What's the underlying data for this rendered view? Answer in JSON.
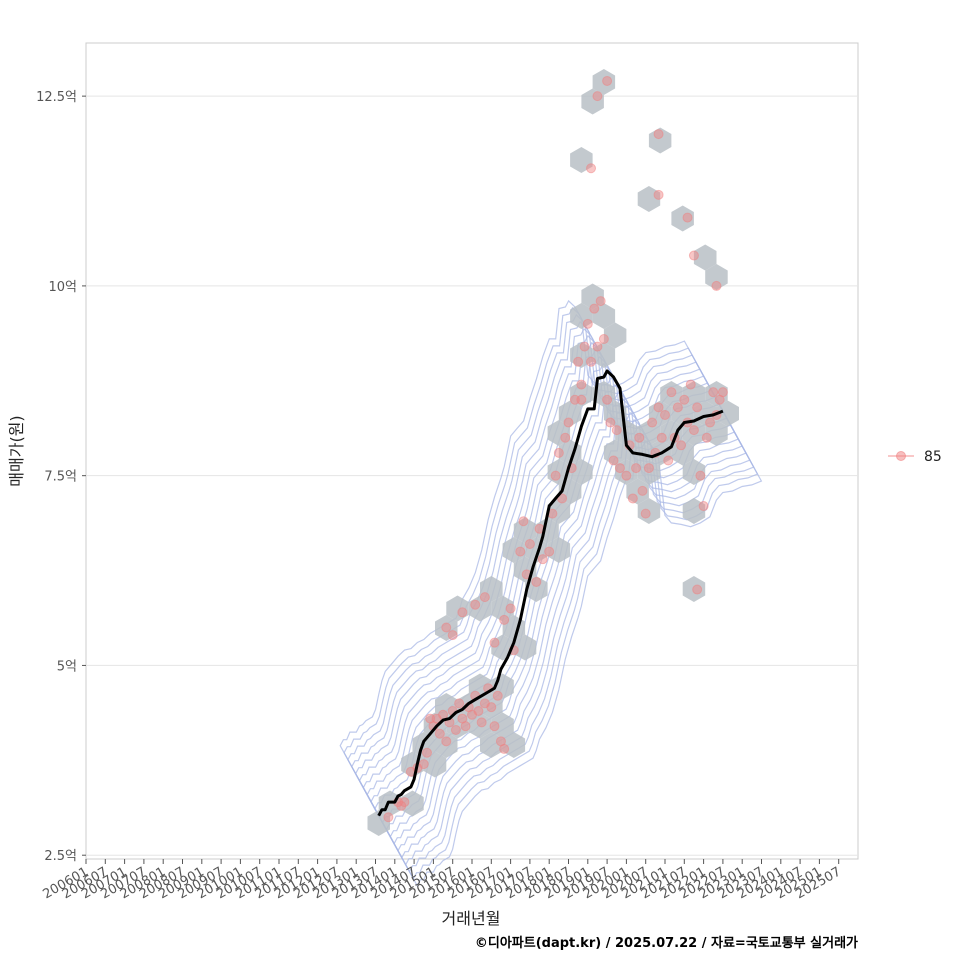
{
  "chart_data": {
    "type": "scatter",
    "xlabel": "거래년월",
    "ylabel": "매매가(원)",
    "caption": "©디아파트(dapt.kr) / 2025.07.22 / 자료=국토교통부 실거래가",
    "legend": {
      "placement": "right",
      "entries": [
        {
          "label": "85",
          "color": "#f08080"
        }
      ]
    },
    "colors": {
      "point": "#f08080",
      "trend": "#000000",
      "hex": "#b8bfc6",
      "contour": "#a9b8e6",
      "grid": "#e5e5e5"
    },
    "x_range": [
      "2006-01",
      "2026-01"
    ],
    "y_range": [
      2.45,
      13.2
    ],
    "x_ticks": [
      "200601",
      "200607",
      "200701",
      "200707",
      "200801",
      "200807",
      "200901",
      "200907",
      "201001",
      "201007",
      "201101",
      "201107",
      "201201",
      "201207",
      "201301",
      "201307",
      "201401",
      "201407",
      "201501",
      "201507",
      "201601",
      "201607",
      "201701",
      "201707",
      "201801",
      "201807",
      "201901",
      "201907",
      "202001",
      "202007",
      "202101",
      "202107",
      "202201",
      "202207",
      "202301",
      "202307",
      "202401",
      "202407",
      "202501",
      "202507"
    ],
    "y_ticks": [
      {
        "value": 2.5,
        "label": "2.5억"
      },
      {
        "value": 5,
        "label": "5억"
      },
      {
        "value": 7.5,
        "label": "7.5억"
      },
      {
        "value": 10,
        "label": "10억"
      },
      {
        "value": 12.5,
        "label": "12.5억"
      }
    ],
    "trend": [
      [
        "2013-08",
        3.02
      ],
      [
        "2013-09",
        3.1
      ],
      [
        "2013-10",
        3.1
      ],
      [
        "2013-11",
        3.2
      ],
      [
        "2014-01",
        3.2
      ],
      [
        "2014-02",
        3.28
      ],
      [
        "2014-03",
        3.3
      ],
      [
        "2014-04",
        3.35
      ],
      [
        "2014-06",
        3.4
      ],
      [
        "2014-07",
        3.5
      ],
      [
        "2014-08",
        3.7
      ],
      [
        "2014-09",
        3.88
      ],
      [
        "2014-10",
        4.0
      ],
      [
        "2014-12",
        4.1
      ],
      [
        "2015-02",
        4.2
      ],
      [
        "2015-04",
        4.28
      ],
      [
        "2015-06",
        4.3
      ],
      [
        "2015-08",
        4.38
      ],
      [
        "2015-10",
        4.42
      ],
      [
        "2015-12",
        4.5
      ],
      [
        "2016-02",
        4.55
      ],
      [
        "2016-04",
        4.6
      ],
      [
        "2016-06",
        4.65
      ],
      [
        "2016-08",
        4.7
      ],
      [
        "2016-09",
        4.8
      ],
      [
        "2016-10",
        4.95
      ],
      [
        "2016-12",
        5.1
      ],
      [
        "2017-02",
        5.3
      ],
      [
        "2017-04",
        5.6
      ],
      [
        "2017-06",
        6.0
      ],
      [
        "2017-08",
        6.3
      ],
      [
        "2017-10",
        6.55
      ],
      [
        "2017-11",
        6.7
      ],
      [
        "2018-01",
        7.1
      ],
      [
        "2018-03",
        7.2
      ],
      [
        "2018-05",
        7.3
      ],
      [
        "2018-07",
        7.6
      ],
      [
        "2018-09",
        7.85
      ],
      [
        "2018-11",
        8.15
      ],
      [
        "2019-01",
        8.38
      ],
      [
        "2019-03",
        8.38
      ],
      [
        "2019-04",
        8.78
      ],
      [
        "2019-06",
        8.8
      ],
      [
        "2019-07",
        8.88
      ],
      [
        "2019-09",
        8.8
      ],
      [
        "2019-11",
        8.65
      ],
      [
        "2020-01",
        7.9
      ],
      [
        "2020-03",
        7.8
      ],
      [
        "2020-06",
        7.78
      ],
      [
        "2020-09",
        7.75
      ],
      [
        "2020-12",
        7.8
      ],
      [
        "2021-03",
        7.88
      ],
      [
        "2021-05",
        8.1
      ],
      [
        "2021-07",
        8.2
      ],
      [
        "2021-10",
        8.22
      ],
      [
        "2022-01",
        8.28
      ],
      [
        "2022-04",
        8.3
      ],
      [
        "2022-07",
        8.35
      ]
    ],
    "points": [
      [
        "2013-11",
        3.0
      ],
      [
        "2014-02",
        3.2
      ],
      [
        "2014-03",
        3.15
      ],
      [
        "2014-04",
        3.2
      ],
      [
        "2014-06",
        3.6
      ],
      [
        "2014-08",
        3.65
      ],
      [
        "2014-10",
        3.7
      ],
      [
        "2014-11",
        3.85
      ],
      [
        "2014-12",
        4.3
      ],
      [
        "2015-01",
        4.2
      ],
      [
        "2015-02",
        4.3
      ],
      [
        "2015-03",
        4.1
      ],
      [
        "2015-04",
        4.35
      ],
      [
        "2015-05",
        4.0
      ],
      [
        "2015-06",
        4.25
      ],
      [
        "2015-07",
        4.4
      ],
      [
        "2015-08",
        4.15
      ],
      [
        "2015-09",
        4.5
      ],
      [
        "2015-10",
        4.3
      ],
      [
        "2015-11",
        4.2
      ],
      [
        "2015-12",
        4.45
      ],
      [
        "2016-01",
        4.35
      ],
      [
        "2016-02",
        4.6
      ],
      [
        "2016-03",
        4.4
      ],
      [
        "2016-04",
        4.25
      ],
      [
        "2016-05",
        4.5
      ],
      [
        "2016-06",
        4.7
      ],
      [
        "2016-07",
        4.45
      ],
      [
        "2016-08",
        4.2
      ],
      [
        "2016-09",
        4.6
      ],
      [
        "2016-10",
        4.0
      ],
      [
        "2016-11",
        3.9
      ],
      [
        "2015-05",
        5.5
      ],
      [
        "2015-07",
        5.4
      ],
      [
        "2015-10",
        5.7
      ],
      [
        "2016-02",
        5.8
      ],
      [
        "2016-05",
        5.9
      ],
      [
        "2016-08",
        5.3
      ],
      [
        "2016-11",
        5.6
      ],
      [
        "2017-01",
        5.75
      ],
      [
        "2017-02",
        5.2
      ],
      [
        "2017-04",
        6.5
      ],
      [
        "2017-05",
        6.9
      ],
      [
        "2017-06",
        6.2
      ],
      [
        "2017-07",
        6.6
      ],
      [
        "2017-09",
        6.1
      ],
      [
        "2017-10",
        6.8
      ],
      [
        "2017-11",
        6.4
      ],
      [
        "2018-01",
        6.5
      ],
      [
        "2018-02",
        7.0
      ],
      [
        "2018-03",
        7.5
      ],
      [
        "2018-04",
        7.8
      ],
      [
        "2018-05",
        7.2
      ],
      [
        "2018-06",
        8.0
      ],
      [
        "2018-07",
        8.2
      ],
      [
        "2018-08",
        7.6
      ],
      [
        "2018-09",
        8.5
      ],
      [
        "2018-10",
        9.0
      ],
      [
        "2018-11",
        8.7
      ],
      [
        "2018-12",
        9.2
      ],
      [
        "2019-01",
        9.5
      ],
      [
        "2019-02",
        9.0
      ],
      [
        "2019-03",
        9.7
      ],
      [
        "2019-04",
        9.2
      ],
      [
        "2019-05",
        9.8
      ],
      [
        "2019-06",
        9.3
      ],
      [
        "2019-07",
        8.5
      ],
      [
        "2019-08",
        8.2
      ],
      [
        "2019-09",
        7.7
      ],
      [
        "2019-10",
        8.1
      ],
      [
        "2019-11",
        7.6
      ],
      [
        "2018-11",
        8.5
      ],
      [
        "2020-01",
        7.5
      ],
      [
        "2020-02",
        7.9
      ],
      [
        "2020-03",
        7.2
      ],
      [
        "2020-04",
        7.6
      ],
      [
        "2020-05",
        8.0
      ],
      [
        "2020-06",
        7.3
      ],
      [
        "2020-07",
        7.0
      ],
      [
        "2020-08",
        7.6
      ],
      [
        "2020-09",
        8.2
      ],
      [
        "2020-10",
        7.8
      ],
      [
        "2020-11",
        8.4
      ],
      [
        "2020-12",
        8.0
      ],
      [
        "2021-01",
        8.3
      ],
      [
        "2021-02",
        7.7
      ],
      [
        "2021-03",
        8.6
      ],
      [
        "2021-04",
        8.0
      ],
      [
        "2021-05",
        8.4
      ],
      [
        "2021-06",
        7.9
      ],
      [
        "2021-07",
        8.5
      ],
      [
        "2021-08",
        8.2
      ],
      [
        "2021-09",
        8.7
      ],
      [
        "2021-10",
        8.1
      ],
      [
        "2021-11",
        8.4
      ],
      [
        "2021-12",
        7.5
      ],
      [
        "2022-01",
        7.1
      ],
      [
        "2022-02",
        8.0
      ],
      [
        "2022-03",
        8.2
      ],
      [
        "2022-04",
        8.6
      ],
      [
        "2022-05",
        8.3
      ],
      [
        "2022-06",
        8.5
      ],
      [
        "2022-07",
        8.6
      ],
      [
        "2019-04",
        12.5
      ],
      [
        "2019-07",
        12.7
      ],
      [
        "2019-02",
        11.55
      ],
      [
        "2020-11",
        12.0
      ],
      [
        "2020-11",
        11.2
      ],
      [
        "2021-08",
        10.9
      ],
      [
        "2021-10",
        10.4
      ],
      [
        "2022-05",
        10.0
      ],
      [
        "2021-11",
        6.0
      ]
    ]
  }
}
